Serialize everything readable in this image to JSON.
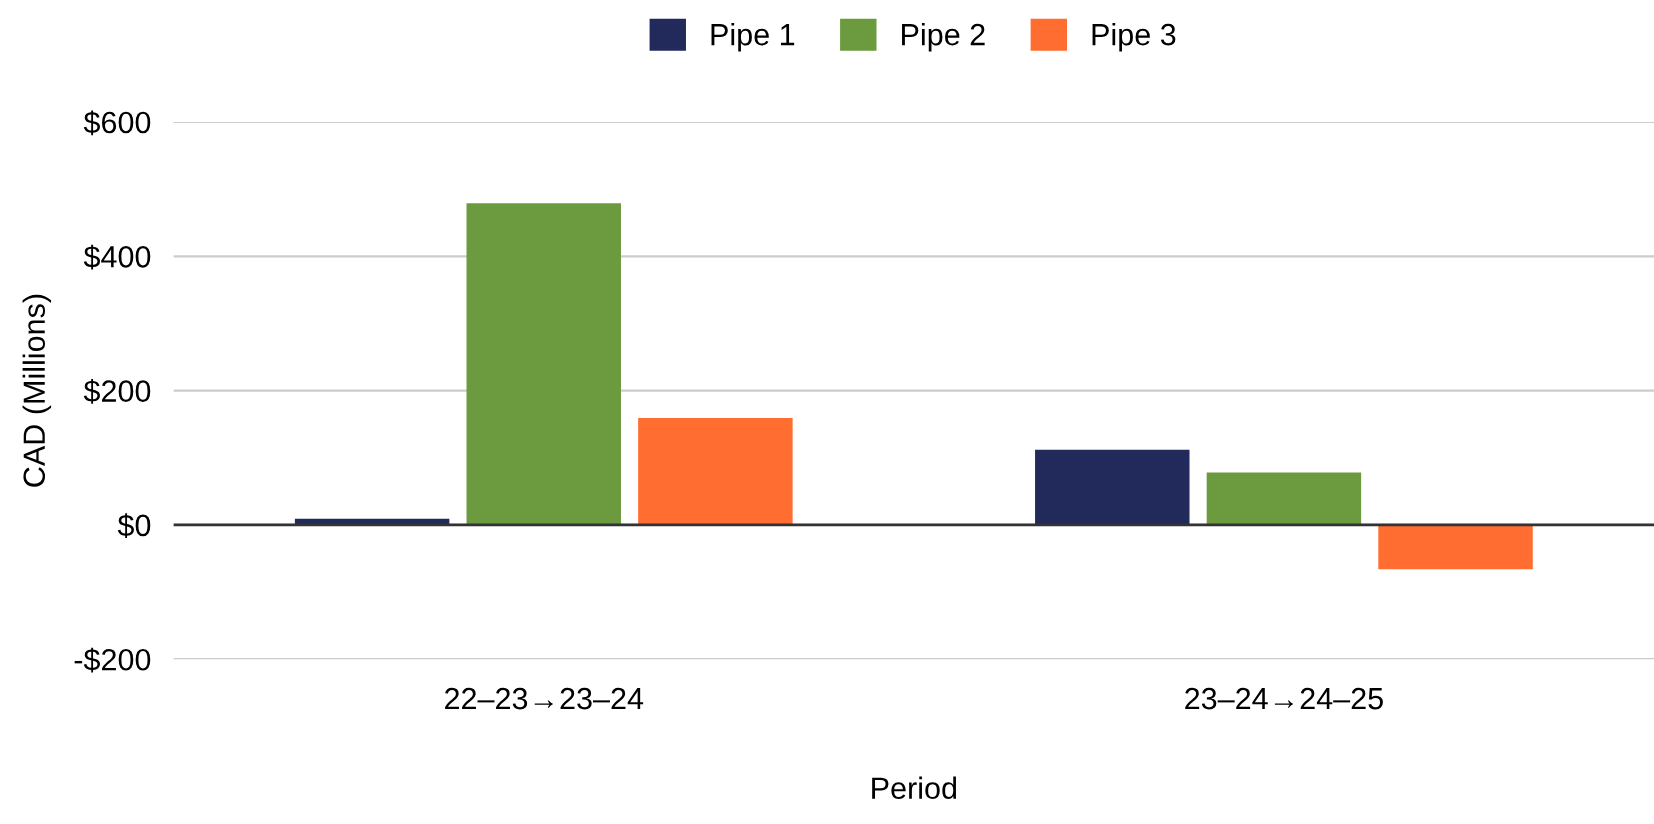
{
  "chart_data": {
    "type": "bar",
    "xlabel": "Period",
    "ylabel": "CAD (Millions)",
    "categories": [
      "22–23→23–24",
      "23–24→24–25"
    ],
    "series": [
      {
        "name": "Pipe 1",
        "color": "#222a5c",
        "values": [
          9,
          112
        ]
      },
      {
        "name": "Pipe 2",
        "color": "#6b9a3f",
        "values": [
          479,
          78
        ]
      },
      {
        "name": "Pipe 3",
        "color": "#ff6d31",
        "values": [
          159,
          -66
        ]
      }
    ],
    "ylim": [
      -200,
      600
    ],
    "yticks": [
      {
        "value": -200,
        "label": "-$200"
      },
      {
        "value": 0,
        "label": "$0"
      },
      {
        "value": 200,
        "label": "$200"
      },
      {
        "value": 400,
        "label": "$400"
      },
      {
        "value": 600,
        "label": "$600"
      }
    ],
    "grid": "y",
    "legend": "top"
  }
}
